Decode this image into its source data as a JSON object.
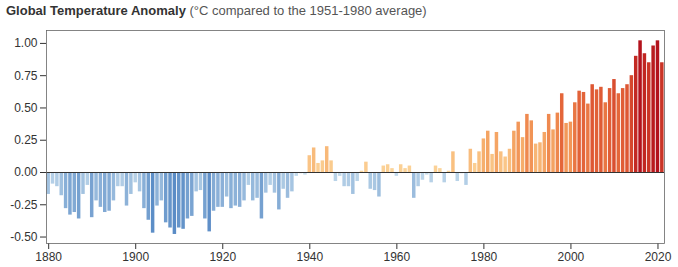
{
  "chart_data": {
    "type": "bar",
    "title": "Global Temperature Anomaly",
    "subtitle": "(°C compared to the 1951-1980 average)",
    "x": [
      1880,
      1881,
      1882,
      1883,
      1884,
      1885,
      1886,
      1887,
      1888,
      1889,
      1890,
      1891,
      1892,
      1893,
      1894,
      1895,
      1896,
      1897,
      1898,
      1899,
      1900,
      1901,
      1902,
      1903,
      1904,
      1905,
      1906,
      1907,
      1908,
      1909,
      1910,
      1911,
      1912,
      1913,
      1914,
      1915,
      1916,
      1917,
      1918,
      1919,
      1920,
      1921,
      1922,
      1923,
      1924,
      1925,
      1926,
      1927,
      1928,
      1929,
      1930,
      1931,
      1932,
      1933,
      1934,
      1935,
      1936,
      1937,
      1938,
      1939,
      1940,
      1941,
      1942,
      1943,
      1944,
      1945,
      1946,
      1947,
      1948,
      1949,
      1950,
      1951,
      1952,
      1953,
      1954,
      1955,
      1956,
      1957,
      1958,
      1959,
      1960,
      1961,
      1962,
      1963,
      1964,
      1965,
      1966,
      1967,
      1968,
      1969,
      1970,
      1971,
      1972,
      1973,
      1974,
      1975,
      1976,
      1977,
      1978,
      1979,
      1980,
      1981,
      1982,
      1983,
      1984,
      1985,
      1986,
      1987,
      1988,
      1989,
      1990,
      1991,
      1992,
      1993,
      1994,
      1995,
      1996,
      1997,
      1998,
      1999,
      2000,
      2001,
      2002,
      2003,
      2004,
      2005,
      2006,
      2007,
      2008,
      2009,
      2010,
      2011,
      2012,
      2013,
      2014,
      2015,
      2016,
      2017,
      2018,
      2019,
      2020,
      2021
    ],
    "values": [
      -0.17,
      -0.09,
      -0.11,
      -0.18,
      -0.28,
      -0.33,
      -0.31,
      -0.36,
      -0.17,
      -0.1,
      -0.35,
      -0.22,
      -0.27,
      -0.31,
      -0.3,
      -0.22,
      -0.11,
      -0.11,
      -0.26,
      -0.17,
      -0.08,
      -0.15,
      -0.28,
      -0.37,
      -0.47,
      -0.26,
      -0.22,
      -0.39,
      -0.43,
      -0.48,
      -0.43,
      -0.44,
      -0.36,
      -0.34,
      -0.15,
      -0.14,
      -0.36,
      -0.46,
      -0.3,
      -0.27,
      -0.27,
      -0.19,
      -0.28,
      -0.26,
      -0.27,
      -0.22,
      -0.1,
      -0.22,
      -0.2,
      -0.36,
      -0.16,
      -0.1,
      -0.16,
      -0.29,
      -0.13,
      -0.2,
      -0.15,
      -0.03,
      -0.01,
      -0.02,
      0.13,
      0.19,
      0.07,
      0.09,
      0.2,
      0.09,
      -0.07,
      -0.03,
      -0.11,
      -0.11,
      -0.17,
      -0.07,
      0.01,
      0.08,
      -0.13,
      -0.14,
      -0.19,
      0.05,
      0.06,
      0.03,
      -0.03,
      0.06,
      0.03,
      0.05,
      -0.2,
      -0.11,
      -0.06,
      -0.02,
      -0.08,
      0.05,
      0.03,
      -0.08,
      0.01,
      0.16,
      -0.07,
      -0.01,
      -0.1,
      0.18,
      0.07,
      0.16,
      0.26,
      0.32,
      0.14,
      0.31,
      0.16,
      0.12,
      0.18,
      0.32,
      0.39,
      0.27,
      0.45,
      0.4,
      0.22,
      0.23,
      0.31,
      0.45,
      0.33,
      0.46,
      0.61,
      0.38,
      0.39,
      0.54,
      0.63,
      0.62,
      0.53,
      0.68,
      0.64,
      0.66,
      0.54,
      0.65,
      0.72,
      0.61,
      0.65,
      0.68,
      0.75,
      0.9,
      1.02,
      0.92,
      0.85,
      0.98,
      1.02,
      0.85
    ],
    "xlim": [
      1879.5,
      2021.5
    ],
    "xticks": [
      1880,
      1900,
      1920,
      1940,
      1960,
      1980,
      2000,
      2020
    ],
    "ylim": [
      -0.55,
      1.1
    ],
    "yticks": [
      {
        "value": -0.5,
        "label": "-0.50"
      },
      {
        "value": -0.25,
        "label": "-0.25"
      },
      {
        "value": 0,
        "label": "0.00"
      },
      {
        "value": 0.25,
        "label": "0.25"
      },
      {
        "value": 0.5,
        "label": "0.50"
      },
      {
        "value": 0.75,
        "label": "0.75"
      },
      {
        "value": 1,
        "label": "1.00"
      }
    ],
    "grid": false
  }
}
